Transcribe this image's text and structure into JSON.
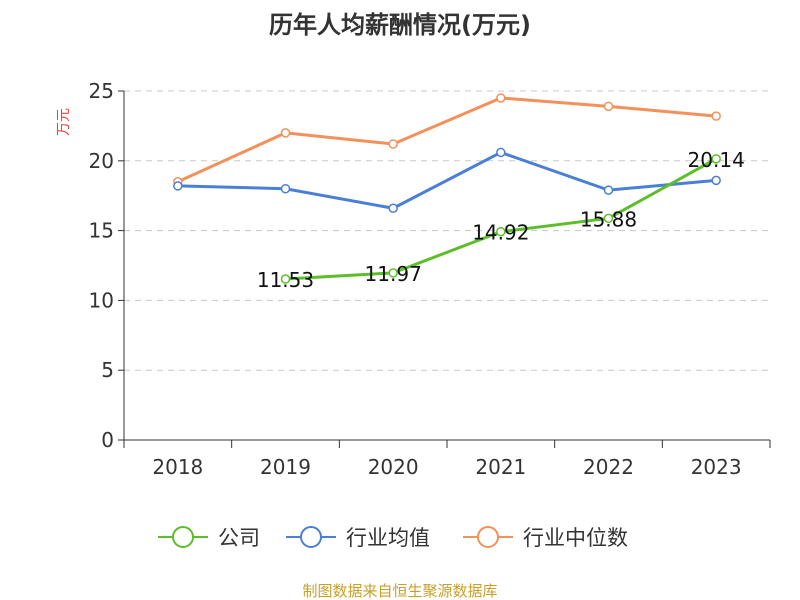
{
  "chart_data": {
    "type": "line",
    "title": "历年人均薪酬情况(万元)",
    "ylabel": "万元",
    "xlabel": "",
    "categories": [
      "2018",
      "2019",
      "2020",
      "2021",
      "2022",
      "2023"
    ],
    "ylim": [
      0,
      25
    ],
    "yticks": [
      0,
      5,
      10,
      15,
      20,
      25
    ],
    "grid": true,
    "legend_position": "bottom",
    "series": [
      {
        "name": "公司",
        "color": "#5cbf2a",
        "values": [
          null,
          11.53,
          11.97,
          14.92,
          15.88,
          20.14
        ],
        "labels": [
          "",
          "11.53",
          "11.97",
          "14.92",
          "15.88",
          "20.14"
        ]
      },
      {
        "name": "行业均值",
        "color": "#4a7fd6",
        "values": [
          18.2,
          18.0,
          16.6,
          20.6,
          17.9,
          18.6
        ]
      },
      {
        "name": "行业中位数",
        "color": "#f4905a",
        "values": [
          18.5,
          22.0,
          21.2,
          24.5,
          23.9,
          23.2
        ]
      }
    ]
  },
  "source": "制图数据来自恒生聚源数据库"
}
